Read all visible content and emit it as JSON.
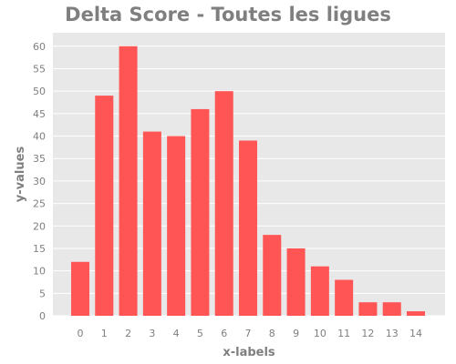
{
  "chart_data": {
    "type": "bar",
    "title": "Delta Score - Toutes les ligues",
    "xlabel": "x-labels",
    "ylabel": "y-values",
    "categories": [
      "0",
      "1",
      "2",
      "3",
      "4",
      "5",
      "6",
      "7",
      "8",
      "9",
      "10",
      "11",
      "12",
      "13",
      "14"
    ],
    "values": [
      12,
      49,
      60,
      41,
      40,
      46,
      50,
      39,
      18,
      15,
      11,
      8,
      3,
      3,
      1
    ],
    "ylim": [
      0,
      63
    ],
    "yticks": [
      0,
      5,
      10,
      15,
      20,
      25,
      30,
      35,
      40,
      45,
      50,
      55,
      60
    ],
    "grid": true,
    "colors": {
      "bar": "#ff5555",
      "plot_background": "#e8e8e8",
      "grid": "#ffffff",
      "text": "#7f7f7f"
    }
  }
}
